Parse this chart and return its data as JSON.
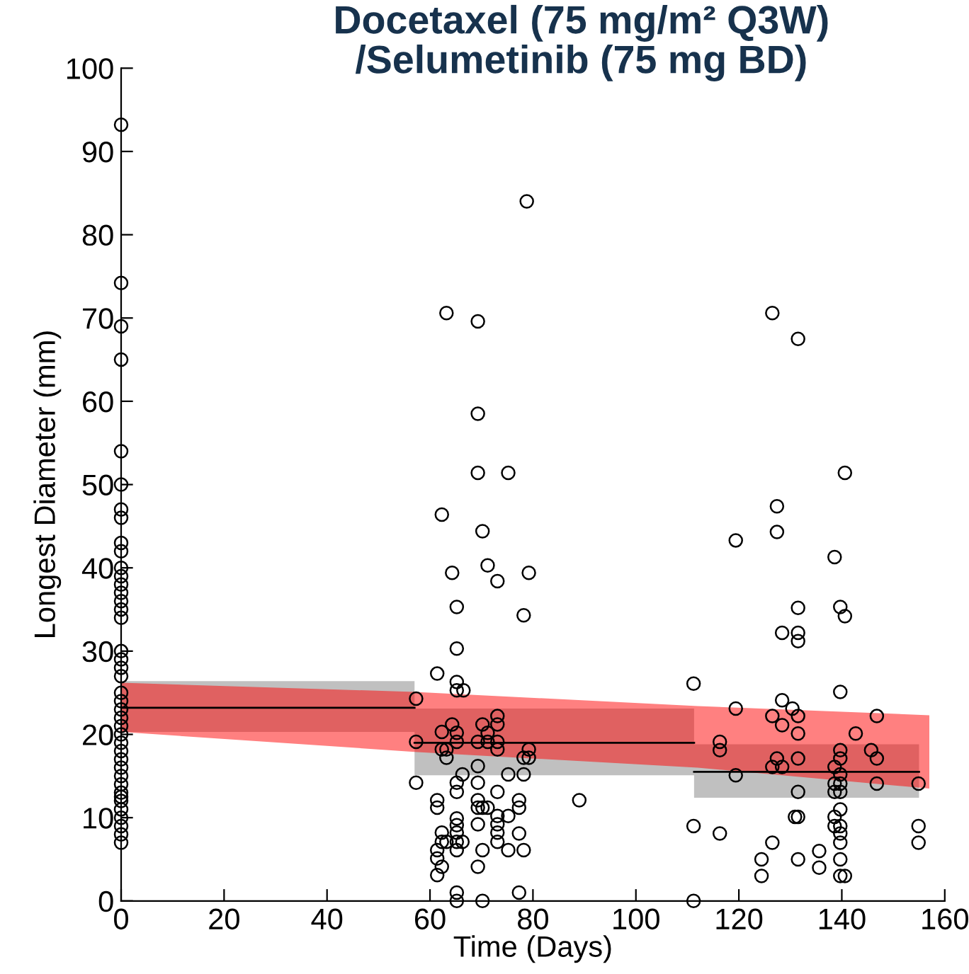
{
  "chart_data": {
    "type": "scatter",
    "title": "Docetaxel (75 mg/m² Q3W)\n/Selumetinib (75 mg BD)",
    "xlabel": "Time (Days)",
    "ylabel": "Longest Diameter (mm)",
    "xlim": [
      0,
      160
    ],
    "xticks": [
      0,
      20,
      40,
      60,
      80,
      100,
      120,
      140,
      160
    ],
    "ylim": [
      0,
      100
    ],
    "yticks": [
      0,
      10,
      20,
      30,
      40,
      50,
      60,
      70,
      80,
      90,
      100
    ],
    "grid": false,
    "legend": false,
    "series": [
      {
        "type": "line",
        "color": "#000000",
        "x": [
          0,
          57,
          57,
          111.3,
          111.3,
          155
        ],
        "values": [
          23.2,
          23.2,
          19.0,
          19.0,
          15.5,
          15.5
        ],
        "lower": [
          20.3,
          20.3,
          15.1,
          15.1,
          12.4,
          12.4
        ],
        "upper": [
          26.4,
          26.4,
          23.1,
          23.1,
          18.8,
          18.8
        ]
      },
      {
        "type": "line",
        "color": "#ff8080",
        "x": [
          0,
          57,
          112,
          157
        ],
        "values": [
          null,
          null,
          null,
          null
        ],
        "lower": [
          20.3,
          17.9,
          16.0,
          13.5
        ],
        "upper": [
          26.2,
          25.1,
          23.4,
          22.3
        ]
      },
      {
        "color": "#000000",
        "marker": "circle",
        "x": [
          0,
          0,
          0,
          0,
          0,
          0,
          0,
          0,
          0,
          0,
          0,
          0,
          0,
          0,
          0,
          0,
          0,
          0,
          0,
          0,
          0,
          0,
          0,
          0,
          0,
          0,
          0,
          0,
          0,
          0,
          0,
          0,
          0,
          0,
          0,
          0,
          0,
          0,
          0,
          0,
          0,
          63.2,
          69.3,
          69.3,
          69.3,
          75.2,
          62.3,
          70.2,
          71.2,
          64.3,
          73.1,
          79.2,
          65.2,
          78.2,
          65.2,
          61.4,
          65.2,
          65.2,
          66.5,
          57.3,
          57.3,
          62.3,
          64.3,
          65.2,
          65.2,
          62.3,
          63.2,
          63.2,
          69.3,
          70.2,
          71.2,
          71.2,
          73.1,
          73.1,
          73.1,
          73.1,
          78.2,
          79.2,
          79.2,
          57.3,
          66.3,
          65.2,
          65.2,
          69.3,
          69.3,
          75.2,
          78.2,
          73.1,
          61.4,
          61.4,
          69.3,
          69.3,
          70.2,
          71.2,
          77.3,
          77.3,
          73.1,
          75.2,
          65.2,
          65.2,
          65.2,
          73.1,
          73.1,
          73.1,
          62.3,
          63.2,
          62.3,
          65.2,
          66.3,
          65.2,
          61.4,
          61.4,
          61.4,
          62.3,
          69.3,
          70.2,
          75.2,
          78.2,
          77.3,
          69.3,
          65.2,
          65.2,
          70.2,
          77.3,
          89.0,
          78.8,
          126.5,
          131.5,
          140.6,
          127.4,
          127.4,
          119.4,
          138.6,
          131.5,
          139.7,
          140.6,
          128.4,
          131.5,
          131.5,
          111.2,
          139.7,
          128.4,
          119.4,
          130.4,
          126.5,
          128.4,
          131.5,
          146.8,
          131.5,
          142.7,
          116.3,
          116.3,
          145.7,
          146.8,
          139.7,
          139.7,
          127.4,
          131.5,
          126.5,
          128.4,
          138.6,
          139.7,
          119.4,
          146.8,
          154.9,
          138.6,
          139.7,
          138.6,
          139.7,
          131.5,
          139.7,
          130.9,
          131.5,
          138.6,
          138.6,
          139.7,
          139.7,
          111.2,
          116.3,
          154.9,
          154.9,
          126.5,
          139.7,
          135.6,
          131.5,
          124.4,
          139.7,
          135.6,
          124.4,
          139.7,
          140.6,
          111.2
        ],
        "values": [
          93.2,
          74.2,
          69,
          65,
          54,
          50,
          47,
          46,
          43,
          42,
          40,
          39,
          38,
          37,
          36,
          35,
          34,
          30,
          29,
          28,
          27,
          25,
          24,
          23,
          22,
          21,
          20,
          19,
          18,
          17,
          16,
          15,
          14,
          13,
          12.5,
          12,
          11,
          10,
          9,
          8,
          7,
          70.6,
          69.6,
          58.5,
          51.4,
          51.4,
          46.4,
          44.4,
          40.3,
          39.4,
          38.4,
          39.4,
          35.3,
          34.3,
          30.3,
          27.3,
          26.3,
          25.3,
          25.3,
          24.3,
          19.1,
          20.3,
          21.2,
          20.2,
          19.1,
          18.2,
          18.2,
          17.2,
          19.1,
          21.2,
          20.2,
          19.1,
          22.2,
          21.2,
          19.1,
          18.2,
          17.2,
          18.2,
          17.2,
          14.2,
          15.2,
          14.2,
          13.1,
          16.2,
          14.2,
          15.2,
          15.2,
          13.1,
          12.1,
          11.2,
          12.1,
          11.2,
          11.2,
          11.2,
          12.1,
          11.2,
          10.2,
          10.2,
          9.9,
          9.1,
          8.2,
          9.2,
          8.2,
          7.1,
          8.2,
          7.1,
          7.1,
          7.1,
          7.1,
          6.1,
          6.1,
          5.1,
          3.1,
          4.1,
          9.2,
          6.1,
          6.1,
          6.1,
          8.1,
          4.1,
          1.0,
          0,
          0,
          1.0,
          12.1,
          84.0,
          70.6,
          67.5,
          51.4,
          47.4,
          44.3,
          43.3,
          41.3,
          35.2,
          35.3,
          34.2,
          32.2,
          32.2,
          31.2,
          26.1,
          25.1,
          24.1,
          23.1,
          23.1,
          22.2,
          21.1,
          22.2,
          22.2,
          20.1,
          20.1,
          19.1,
          18.1,
          18.1,
          17.1,
          18.1,
          17.1,
          17.1,
          17.1,
          16.1,
          16.1,
          16.1,
          15.2,
          15.1,
          14.1,
          14.1,
          14.1,
          14.1,
          13.1,
          13.1,
          13.1,
          11.0,
          10.1,
          10.1,
          10.1,
          9.0,
          9.0,
          8.1,
          9.0,
          8.1,
          9.0,
          7.0,
          7.0,
          7.0,
          6.0,
          5.0,
          5.0,
          5.0,
          4.0,
          3.0,
          3.0,
          3.0,
          0
        ]
      }
    ]
  }
}
